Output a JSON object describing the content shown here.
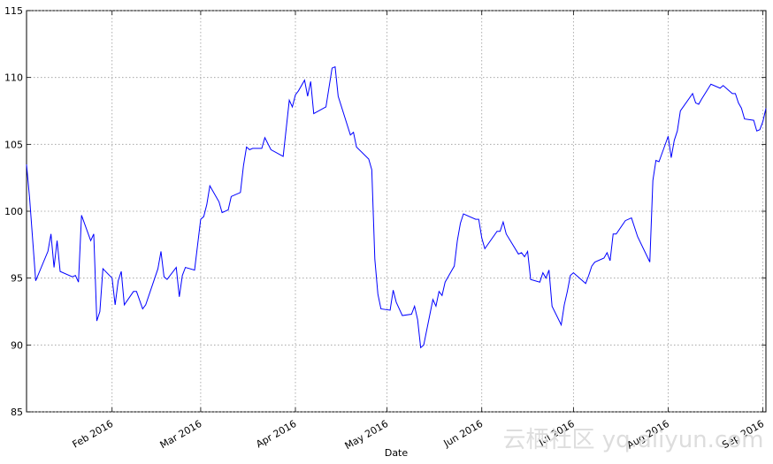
{
  "chart_data": {
    "type": "line",
    "xlabel": "Date",
    "watermark": "云栖社区 yq.aliyun.com",
    "color": "#0000ff",
    "grid": true,
    "x": [
      4,
      5,
      7,
      11,
      12,
      13,
      14,
      15,
      19,
      20,
      21,
      22,
      25,
      26,
      27,
      28,
      29,
      32,
      33,
      34,
      35,
      36,
      39,
      40,
      42,
      43,
      47,
      48,
      49,
      50,
      53,
      54,
      55,
      56,
      59,
      61,
      62,
      63,
      64,
      67,
      68,
      70,
      71,
      74,
      75,
      76,
      77,
      78,
      81,
      82,
      84,
      88,
      90,
      91,
      92,
      93,
      95,
      96,
      97,
      98,
      102,
      104,
      105,
      106,
      110,
      111,
      112,
      116,
      117,
      118,
      119,
      120,
      123,
      124,
      125,
      127,
      130,
      131,
      132,
      133,
      134,
      137,
      138,
      139,
      140,
      141,
      144,
      145,
      146,
      147,
      151,
      152,
      153,
      154,
      158,
      159,
      160,
      161,
      165,
      166,
      167,
      168,
      169,
      172,
      173,
      174,
      175,
      176,
      179,
      180,
      181,
      182,
      183,
      187,
      188,
      189,
      190,
      193,
      194,
      195,
      196,
      197,
      200,
      202,
      204,
      208,
      209,
      210,
      211,
      214,
      215,
      216,
      217,
      218,
      222,
      223,
      224,
      225,
      228,
      231,
      232,
      235,
      236,
      237,
      238,
      239,
      242,
      243,
      244,
      245,
      246
    ],
    "values": [
      103.5,
      101,
      94.8,
      97,
      98.3,
      95.8,
      97.8,
      95.5,
      95.1,
      95.2,
      94.7,
      99.7,
      97.8,
      98.3,
      91.8,
      92.5,
      95.7,
      95,
      93,
      94.8,
      95.5,
      93,
      94,
      94,
      92.7,
      93,
      95.7,
      97,
      95.1,
      94.9,
      95.8,
      93.6,
      95.2,
      95.8,
      95.6,
      99.4,
      99.6,
      100.5,
      101.9,
      100.7,
      99.9,
      100.1,
      101.1,
      101.4,
      103.4,
      104.8,
      104.6,
      104.7,
      104.7,
      105.5,
      104.6,
      104.1,
      108.3,
      107.8,
      108.7,
      109,
      109.8,
      108.6,
      109.7,
      107.3,
      107.8,
      110.7,
      110.8,
      108.6,
      105.7,
      105.9,
      104.8,
      103.9,
      103.1,
      96.4,
      93.8,
      92.7,
      92.6,
      94.1,
      93.2,
      92.2,
      92.3,
      92.9,
      91.9,
      89.8,
      90,
      93.4,
      92.9,
      94,
      93.7,
      94.7,
      95.9,
      97.8,
      99.1,
      99.8,
      99.4,
      99.4,
      98,
      97.2,
      98.5,
      98.5,
      99.2,
      98.3,
      96.8,
      96.9,
      96.6,
      97,
      94.9,
      94.7,
      95.4,
      95,
      95.6,
      92.9,
      91.5,
      93,
      94,
      95.2,
      95.4,
      94.6,
      95.2,
      95.9,
      96.2,
      96.5,
      96.9,
      96.3,
      98.3,
      98.3,
      99.3,
      99.5,
      98.1,
      96.2,
      102.3,
      103.8,
      103.7,
      105.6,
      104,
      105.3,
      106,
      107.5,
      108.8,
      108.1,
      108,
      108.4,
      109.5,
      109.2,
      109.4,
      108.8,
      108.8,
      108.1,
      107.7,
      106.9,
      106.8,
      106,
      106.1,
      106.7,
      107.7
    ],
    "xlim": [
      4,
      246
    ],
    "xticks": [
      {
        "value": 32,
        "label": "Feb 2016"
      },
      {
        "value": 61,
        "label": "Mar 2016"
      },
      {
        "value": 92,
        "label": "Apr 2016"
      },
      {
        "value": 122,
        "label": "May 2016"
      },
      {
        "value": 153,
        "label": "Jun 2016"
      },
      {
        "value": 183,
        "label": "Jul 2016"
      },
      {
        "value": 214,
        "label": "Aug 2016"
      },
      {
        "value": 245,
        "label": "Sep 2016"
      }
    ],
    "ylim": [
      85,
      115
    ],
    "yticks": [
      85,
      90,
      95,
      100,
      105,
      110,
      115
    ]
  }
}
